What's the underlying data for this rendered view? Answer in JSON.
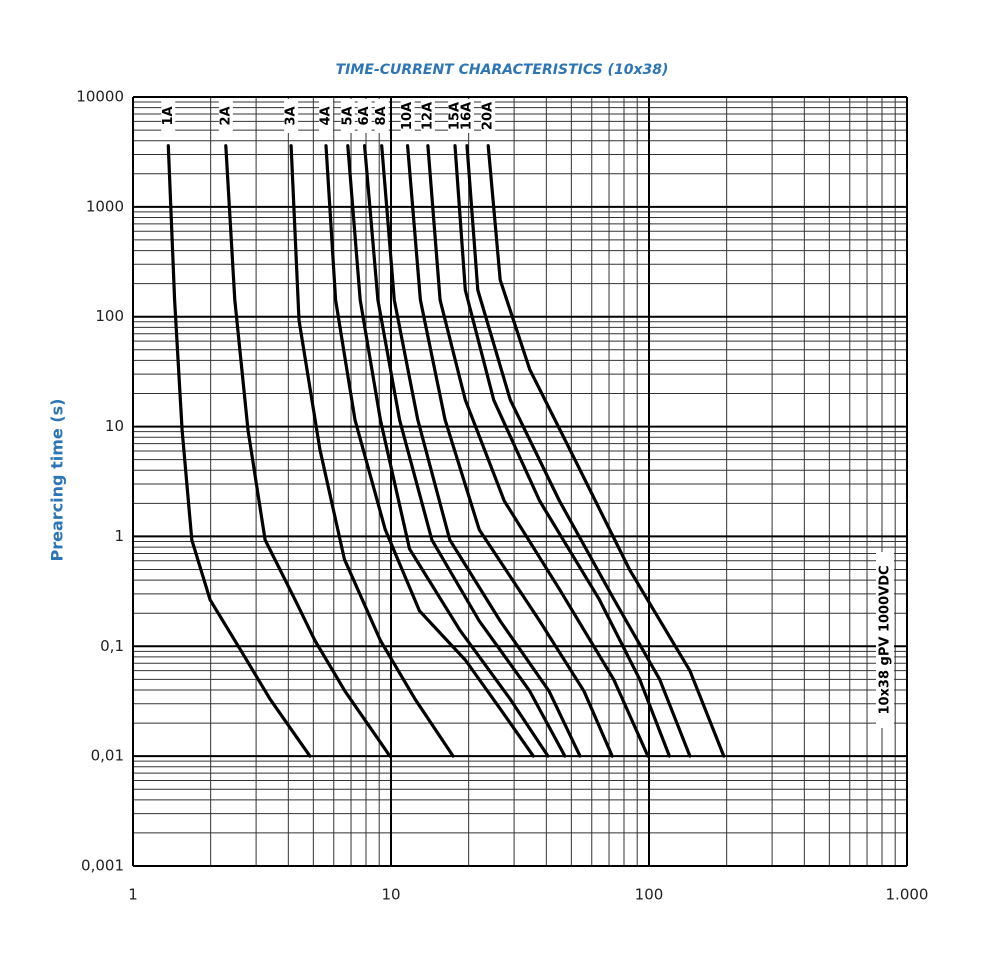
{
  "chart_data": {
    "type": "line",
    "title": "TIME-CURRENT CHARACTERISTICS (10x38)",
    "y_label": "Prearcing time (s)",
    "annotation": "10x38 gPV 1000VDC",
    "xscale": "log",
    "yscale": "log",
    "grid": true,
    "color": "#000000",
    "xlim": [
      1,
      1000
    ],
    "ylim": [
      0.001,
      10000
    ],
    "xticks": [
      1,
      10,
      100,
      {
        "value": 1000,
        "label": "1.000"
      }
    ],
    "yticks": [
      {
        "value": 0.001,
        "label": "0,001"
      },
      {
        "value": 0.01,
        "label": "0,01"
      },
      {
        "value": 0.1,
        "label": "0,1"
      },
      1,
      10,
      100,
      1000,
      10000
    ],
    "series": [
      {
        "name": "1A",
        "x": [
          1.37,
          1.45,
          1.55,
          1.69,
          1.99,
          2.6,
          3.4,
          4.85
        ],
        "values": [
          3600,
          142,
          9.3,
          0.93,
          0.265,
          0.094,
          0.033,
          0.01
        ]
      },
      {
        "name": "2A",
        "x": [
          2.29,
          2.48,
          2.79,
          3.25,
          4.25,
          5.07,
          6.63,
          9.9
        ],
        "values": [
          3600,
          142,
          9.3,
          0.93,
          0.265,
          0.113,
          0.039,
          0.01
        ]
      },
      {
        "name": "3A",
        "x": [
          4.1,
          4.4,
          5.3,
          6.6,
          9.1,
          12.4,
          17.4
        ],
        "values": [
          3600,
          93,
          6.2,
          0.62,
          0.113,
          0.033,
          0.01
        ]
      },
      {
        "name": "4A",
        "x": [
          5.6,
          6.1,
          7.25,
          9.5,
          12.9,
          19.4,
          26.5,
          35.6
        ],
        "values": [
          3600,
          142,
          11.5,
          1.15,
          0.21,
          0.075,
          0.027,
          0.01
        ]
      },
      {
        "name": "5A",
        "x": [
          6.8,
          7.6,
          9.1,
          11.8,
          18.5,
          29,
          40.6
        ],
        "values": [
          3600,
          142,
          11.5,
          0.77,
          0.14,
          0.033,
          0.01
        ]
      },
      {
        "name": "6A",
        "x": [
          7.9,
          8.9,
          10.8,
          14.4,
          22,
          34.5,
          47.2
        ],
        "values": [
          3600,
          142,
          11.5,
          0.93,
          0.17,
          0.039,
          0.01
        ]
      },
      {
        "name": "8A",
        "x": [
          9.2,
          10.3,
          12.7,
          16.9,
          26.5,
          41,
          54
        ],
        "values": [
          3600,
          142,
          11.5,
          0.93,
          0.17,
          0.039,
          0.01
        ]
      },
      {
        "name": "10A",
        "x": [
          11.6,
          13,
          16.2,
          22,
          37.7,
          56,
          72
        ],
        "values": [
          3600,
          142,
          11.5,
          1.15,
          0.17,
          0.039,
          0.01
        ]
      },
      {
        "name": "12A",
        "x": [
          13.9,
          15.5,
          19.4,
          27.5,
          45,
          73,
          99
        ],
        "values": [
          3600,
          142,
          17.5,
          2.1,
          0.33,
          0.05,
          0.01
        ]
      },
      {
        "name": "15A",
        "x": [
          17.7,
          19.4,
          25,
          37.7,
          64,
          92,
          120
        ],
        "values": [
          3600,
          175,
          17.5,
          2.1,
          0.27,
          0.05,
          0.01
        ]
      },
      {
        "name": "16A",
        "x": [
          19.7,
          21.7,
          29,
          45,
          73,
          110,
          144
        ],
        "values": [
          3600,
          175,
          17.5,
          2.1,
          0.27,
          0.05,
          0.01
        ]
      },
      {
        "name": "20A",
        "x": [
          23.8,
          26.5,
          34.5,
          51.6,
          84,
          144,
          195
        ],
        "values": [
          3600,
          216,
          33,
          5,
          0.5,
          0.06,
          0.01
        ]
      }
    ]
  }
}
